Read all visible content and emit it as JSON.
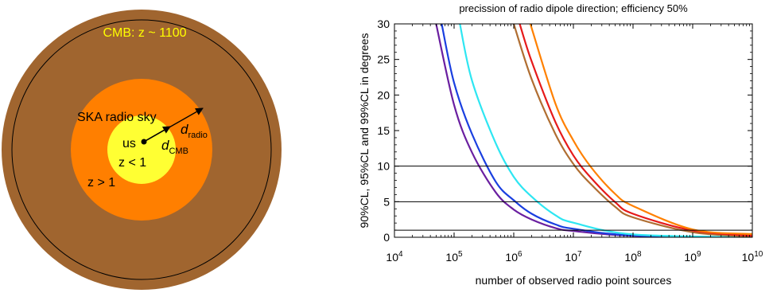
{
  "diagram": {
    "cmb_label": "CMB: z ~ 1100",
    "radio_sky_label": "SKA radio sky",
    "observer_label": "us",
    "near_label": "z < 1",
    "far_label": "z > 1",
    "d_radio": {
      "base": "d",
      "sub": "radio"
    },
    "d_cmb": {
      "base": "d",
      "sub": "CMB"
    },
    "colors": {
      "cmb_shell": "#a0652f",
      "radio_shell": "#ff7f00",
      "near_core": "#ffff33",
      "cmb_text": "#ffff00",
      "outline": "#000000"
    }
  },
  "chart_data": {
    "type": "line",
    "title": "precission of radio dipole direction; efficiency 50%",
    "xlabel": "number of observed radio point sources",
    "ylabel": "90%CL, 95%CL and 99%CL in degrees",
    "xscale": "log",
    "xlim": [
      10000,
      10000000000
    ],
    "ylim": [
      0,
      30
    ],
    "x_ticks": [
      {
        "base": "10",
        "exp": "4"
      },
      {
        "base": "10",
        "exp": "5"
      },
      {
        "base": "10",
        "exp": "6"
      },
      {
        "base": "10",
        "exp": "7"
      },
      {
        "base": "10",
        "exp": "8"
      },
      {
        "base": "10",
        "exp": "9"
      },
      {
        "base": "10",
        "exp": "10"
      }
    ],
    "y_ticks": [
      "0",
      "5",
      "10",
      "15",
      "20",
      "25",
      "30"
    ],
    "reference_lines_y": [
      1,
      5,
      10
    ],
    "grid": false,
    "series": [
      {
        "color": "#6a1fa0",
        "points": [
          [
            50000,
            30
          ],
          [
            100000,
            18.6
          ],
          [
            200000,
            11.9
          ],
          [
            500000,
            6.3
          ],
          [
            1000000,
            3.9
          ],
          [
            2000000,
            2.5
          ],
          [
            5000000,
            1.3
          ],
          [
            10000000,
            0.88
          ],
          [
            100000000,
            0.2
          ],
          [
            10000000000,
            0
          ]
        ]
      },
      {
        "color": "#1a3fe0",
        "points": [
          [
            62000,
            30
          ],
          [
            100000,
            21.7
          ],
          [
            200000,
            14.5
          ],
          [
            500000,
            7.8
          ],
          [
            1000000,
            5.2
          ],
          [
            2000000,
            3.3
          ],
          [
            5000000,
            1.8
          ],
          [
            10000000,
            1.2
          ],
          [
            100000000,
            0.25
          ],
          [
            10000000000,
            0
          ]
        ]
      },
      {
        "color": "#2ee6f2",
        "points": [
          [
            125000,
            30
          ],
          [
            200000,
            22
          ],
          [
            500000,
            13.2
          ],
          [
            1000000,
            8.5
          ],
          [
            2000000,
            5.7
          ],
          [
            5000000,
            3.1
          ],
          [
            10000000,
            2.05
          ],
          [
            100000000,
            0.4
          ],
          [
            10000000000,
            0
          ]
        ]
      },
      {
        "color": "#b06e32",
        "points": [
          [
            1000000,
            30
          ],
          [
            2000000,
            22.2
          ],
          [
            5000000,
            14.5
          ],
          [
            10000000,
            10.3
          ],
          [
            20000000,
            7.4
          ],
          [
            50000000,
            4.3
          ],
          [
            100000000,
            2.8
          ],
          [
            1000000000,
            0.7
          ],
          [
            10000000000,
            0.1
          ]
        ]
      },
      {
        "color": "#e61a1a",
        "points": [
          [
            1260000,
            30
          ],
          [
            2000000,
            24.7
          ],
          [
            5000000,
            16.2
          ],
          [
            10000000,
            11.5
          ],
          [
            20000000,
            8.3
          ],
          [
            50000000,
            4.95
          ],
          [
            100000000,
            3.3
          ],
          [
            1000000000,
            0.95
          ],
          [
            10000000000,
            0.2
          ]
        ]
      },
      {
        "color": "#ff8000",
        "points": [
          [
            1900000,
            30
          ],
          [
            5000000,
            18.8
          ],
          [
            10000000,
            13.6
          ],
          [
            20000000,
            9.8
          ],
          [
            50000000,
            6.1
          ],
          [
            100000000,
            4.4
          ],
          [
            1000000000,
            1.1
          ],
          [
            10000000000,
            0.45
          ]
        ]
      }
    ]
  }
}
